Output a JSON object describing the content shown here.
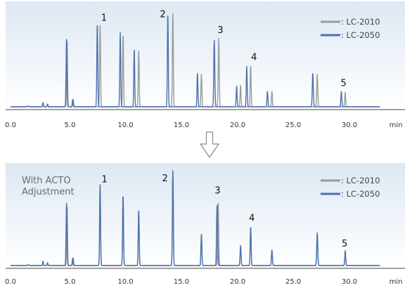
{
  "colors": {
    "lc2010": "#9a9a9a",
    "lc2050": "#4a72b0",
    "bg_top": "#dde8f3",
    "bg_bottom": "#ffffff",
    "axis": "#444444",
    "arrow": "#8a8a8a"
  },
  "chart_data": [
    {
      "type": "line",
      "title": "",
      "annotation": "",
      "xlabel": "min",
      "ylabel": "",
      "xlim": [
        0,
        33
      ],
      "ylim": [
        0,
        1
      ],
      "x_ticks": [
        0,
        5,
        10,
        15,
        20,
        25,
        30
      ],
      "x_tick_labels": [
        "0.0",
        "5.0",
        "10.0",
        "15.0",
        "20.0",
        "25.0",
        "30.0"
      ],
      "legend": {
        "position": "top-right",
        "entries": [
          ": LC-2010",
          ": LC-2050"
        ]
      },
      "series": [
        {
          "name": ": LC-2010",
          "color_key": "lc2010",
          "peaks": [
            [
              1.6,
              0.01,
              0.1
            ],
            [
              2.9,
              0.045,
              0.07
            ],
            [
              3.3,
              0.03,
              0.07
            ],
            [
              5.05,
              0.722,
              0.09
            ],
            [
              5.6,
              0.08,
              0.08
            ],
            [
              8.0,
              0.867,
              0.09
            ],
            [
              10.05,
              0.778,
              0.09
            ],
            [
              11.45,
              0.611,
              0.09
            ],
            [
              14.5,
              1.0,
              0.09
            ],
            [
              17.05,
              0.356,
              0.09
            ],
            [
              18.6,
              0.733,
              0.1
            ],
            [
              20.55,
              0.233,
              0.09
            ],
            [
              21.45,
              0.444,
              0.09
            ],
            [
              23.35,
              0.167,
              0.09
            ],
            [
              27.4,
              0.344,
              0.1
            ],
            [
              29.9,
              0.156,
              0.09
            ]
          ]
        },
        {
          "name": ": LC-2050",
          "color_key": "lc2050",
          "peaks": [
            [
              1.6,
              0.01,
              0.1
            ],
            [
              2.9,
              0.045,
              0.07
            ],
            [
              3.3,
              0.03,
              0.07
            ],
            [
              5.0,
              0.722,
              0.09
            ],
            [
              5.55,
              0.08,
              0.08
            ],
            [
              7.75,
              0.893,
              0.09
            ],
            [
              9.8,
              0.793,
              0.09
            ],
            [
              11.05,
              0.622,
              0.09
            ],
            [
              14.05,
              1.0,
              0.09
            ],
            [
              16.7,
              0.356,
              0.09
            ],
            [
              18.2,
              0.711,
              0.1
            ],
            [
              20.2,
              0.222,
              0.09
            ],
            [
              21.1,
              0.433,
              0.09
            ],
            [
              22.95,
              0.167,
              0.09
            ],
            [
              27.0,
              0.356,
              0.1
            ],
            [
              29.55,
              0.167,
              0.09
            ]
          ]
        }
      ],
      "peak_labels": [
        {
          "text": "1",
          "x": 8.35,
          "y": 0.89
        },
        {
          "text": "2",
          "x": 13.6,
          "y": 0.93
        },
        {
          "text": "3",
          "x": 18.75,
          "y": 0.76
        },
        {
          "text": "4",
          "x": 21.75,
          "y": 0.47
        },
        {
          "text": "5",
          "x": 29.75,
          "y": 0.19
        }
      ]
    },
    {
      "type": "line",
      "title": "",
      "annotation": "With ACTO Adjustment",
      "xlabel": "min",
      "ylabel": "",
      "xlim": [
        0,
        33
      ],
      "ylim": [
        0,
        1
      ],
      "x_ticks": [
        0,
        5,
        10,
        15,
        20,
        25,
        30
      ],
      "x_tick_labels": [
        "0.0",
        "5.0",
        "10.0",
        "15.0",
        "20.0",
        "25.0",
        "30.0"
      ],
      "legend": {
        "position": "top-right",
        "entries": [
          ": LC-2010",
          ": LC-2050"
        ]
      },
      "series": [
        {
          "name": ": LC-2010",
          "color_key": "lc2010",
          "peaks": [
            [
              1.6,
              0.01,
              0.1
            ],
            [
              2.9,
              0.045,
              0.07
            ],
            [
              3.3,
              0.03,
              0.07
            ],
            [
              5.05,
              0.639,
              0.09
            ],
            [
              5.6,
              0.08,
              0.08
            ],
            [
              8.0,
              0.85,
              0.09
            ],
            [
              10.05,
              0.738,
              0.09
            ],
            [
              11.45,
              0.59,
              0.09
            ],
            [
              14.5,
              1.0,
              0.09
            ],
            [
              17.05,
              0.331,
              0.09
            ],
            [
              18.55,
              0.672,
              0.1
            ],
            [
              20.55,
              0.213,
              0.09
            ],
            [
              21.45,
              0.41,
              0.09
            ],
            [
              23.35,
              0.164,
              0.09
            ],
            [
              27.4,
              0.344,
              0.1
            ],
            [
              29.9,
              0.156,
              0.09
            ]
          ]
        },
        {
          "name": ": LC-2050",
          "color_key": "lc2050",
          "peaks": [
            [
              1.6,
              0.01,
              0.1
            ],
            [
              2.9,
              0.045,
              0.07
            ],
            [
              3.3,
              0.03,
              0.07
            ],
            [
              5.0,
              0.656,
              0.09
            ],
            [
              5.55,
              0.08,
              0.08
            ],
            [
              8.0,
              0.852,
              0.09
            ],
            [
              10.05,
              0.746,
              0.09
            ],
            [
              11.45,
              0.59,
              0.09
            ],
            [
              14.5,
              1.0,
              0.09
            ],
            [
              17.05,
              0.336,
              0.09
            ],
            [
              18.45,
              0.648,
              0.1
            ],
            [
              20.55,
              0.213,
              0.09
            ],
            [
              21.45,
              0.41,
              0.09
            ],
            [
              23.35,
              0.164,
              0.09
            ],
            [
              27.4,
              0.344,
              0.1
            ],
            [
              29.9,
              0.156,
              0.09
            ]
          ]
        }
      ],
      "peak_labels": [
        {
          "text": "1",
          "x": 8.4,
          "y": 0.85
        },
        {
          "text": "2",
          "x": 13.8,
          "y": 0.86
        },
        {
          "text": "3",
          "x": 18.5,
          "y": 0.73
        },
        {
          "text": "4",
          "x": 21.55,
          "y": 0.44
        },
        {
          "text": "5",
          "x": 29.85,
          "y": 0.17
        }
      ]
    }
  ]
}
